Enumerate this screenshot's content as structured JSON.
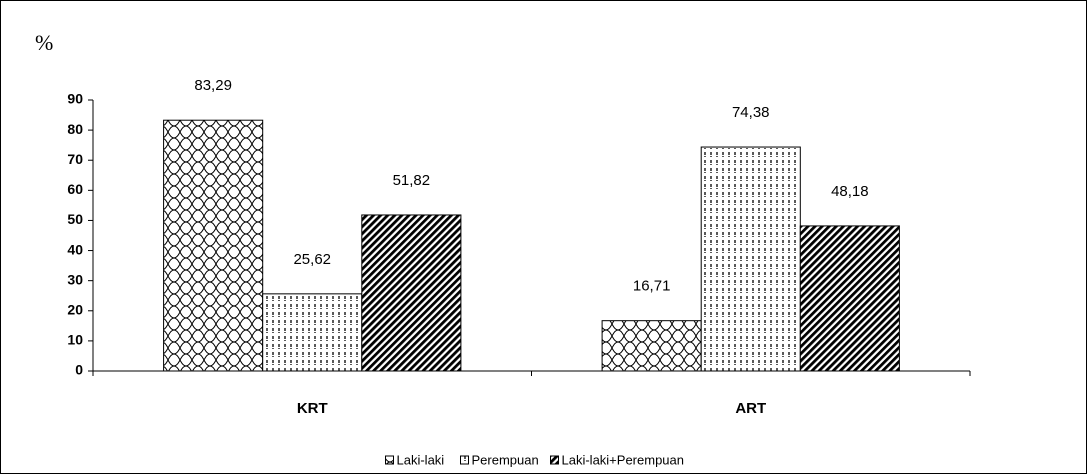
{
  "chart_data": {
    "type": "bar",
    "y_label": "%",
    "categories": [
      "KRT",
      "ART"
    ],
    "series": [
      {
        "name": "Laki-laki",
        "color": "#000000",
        "values": [
          83.29,
          16.71
        ],
        "value_labels": [
          "83,29",
          "16,71"
        ]
      },
      {
        "name": "Perempuan",
        "color": "#000000",
        "values": [
          25.62,
          74.38
        ],
        "value_labels": [
          "25,62",
          "74,38"
        ]
      },
      {
        "name": "Laki-laki+Perempuan",
        "color": "#000000",
        "values": [
          51.82,
          48.18
        ],
        "value_labels": [
          "51,82",
          "48,18"
        ]
      }
    ],
    "ylim": [
      0,
      90
    ],
    "yticks": [
      0,
      10,
      20,
      30,
      40,
      50,
      60,
      70,
      80,
      90
    ],
    "legend": "bottom"
  }
}
